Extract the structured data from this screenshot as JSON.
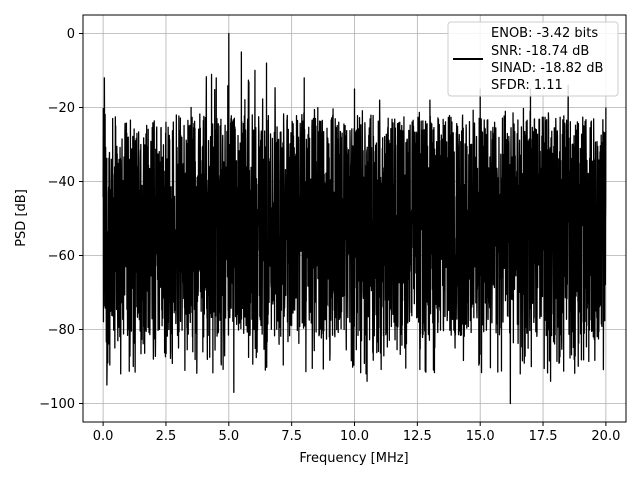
{
  "chart_data": {
    "type": "line",
    "title": "",
    "xlabel": "Frequency [MHz]",
    "ylabel": "PSD [dB]",
    "xlim": [
      -0.8,
      20.8
    ],
    "ylim": [
      -105,
      5
    ],
    "x_ticks": [
      0.0,
      2.5,
      5.0,
      7.5,
      10.0,
      12.5,
      15.0,
      17.5,
      20.0
    ],
    "x_tick_labels": [
      "0.0",
      "2.5",
      "5.0",
      "7.5",
      "10.0",
      "12.5",
      "15.0",
      "17.5",
      "20.0"
    ],
    "y_ticks": [
      0,
      -20,
      -40,
      -60,
      -80,
      -100
    ],
    "y_tick_labels": [
      "0",
      "−20",
      "−40",
      "−60",
      "−80",
      "−100"
    ],
    "grid": true,
    "legend_position": "top-right",
    "line_color": "#000000",
    "series": [
      {
        "name": "",
        "x_range": [
          0,
          20
        ],
        "sample_points": [
          [
            0.05,
            -12
          ],
          [
            0.15,
            -95
          ],
          [
            0.3,
            -45
          ],
          [
            0.5,
            -25
          ],
          [
            0.7,
            -92
          ],
          [
            1.0,
            -28
          ],
          [
            1.2,
            -90
          ],
          [
            1.5,
            -30
          ],
          [
            2.0,
            -88
          ],
          [
            2.5,
            -24
          ],
          [
            3.0,
            -85
          ],
          [
            3.5,
            -20
          ],
          [
            4.0,
            -82
          ],
          [
            4.5,
            -12
          ],
          [
            5.0,
            0
          ],
          [
            5.2,
            -97
          ],
          [
            5.5,
            -5
          ],
          [
            6.0,
            -80
          ],
          [
            6.5,
            -8
          ],
          [
            7.0,
            -84
          ],
          [
            7.4,
            -62
          ],
          [
            8.0,
            -12
          ],
          [
            9.0,
            -82
          ],
          [
            10.0,
            -15
          ],
          [
            10.5,
            -94
          ],
          [
            11.0,
            -18
          ],
          [
            12.0,
            -85
          ],
          [
            13.0,
            -18
          ],
          [
            14.0,
            -85
          ],
          [
            15.0,
            -15
          ],
          [
            16.2,
            -100
          ],
          [
            17.0,
            -15
          ],
          [
            17.8,
            -94
          ],
          [
            18.5,
            -14
          ],
          [
            19.5,
            -82
          ],
          [
            20.0,
            -20
          ]
        ]
      }
    ],
    "legend_entries": [
      "ENOB: -3.42 bits",
      "SNR: -18.74 dB",
      "SINAD: -18.82 dB",
      "SFDR: 1.11"
    ]
  }
}
